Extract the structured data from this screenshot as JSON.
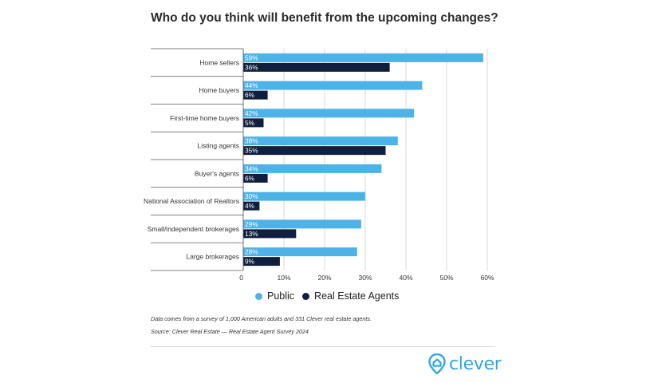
{
  "title": "Who do you think will benefit from the upcoming changes?",
  "colors": {
    "public": "#4db3e6",
    "agents": "#0f1f3d",
    "grid": "#d9d9d9",
    "brand": "#2fa7e6"
  },
  "chart_data": {
    "type": "bar",
    "orientation": "horizontal",
    "categories": [
      "Home sellers",
      "Home buyers",
      "First-time home buyers",
      "Listing agents",
      "Buyer's agents",
      "National Association of Realtors",
      "Small/independent brokerages",
      "Large brokerages"
    ],
    "series": [
      {
        "name": "Public",
        "values": [
          59,
          44,
          42,
          38,
          34,
          30,
          29,
          28
        ],
        "labels": [
          "59%",
          "44%",
          "42%",
          "38%",
          "34%",
          "30%",
          "29%",
          "28%"
        ]
      },
      {
        "name": "Real Estate Agents",
        "values": [
          36,
          6,
          5,
          35,
          6,
          4,
          13,
          9
        ],
        "labels": [
          "36%",
          "6%",
          "5%",
          "35%",
          "6%",
          "4%",
          "13%",
          "9%"
        ]
      }
    ],
    "xlim": [
      0,
      60
    ],
    "ticks": [
      "0",
      "10%",
      "20%",
      "30%",
      "40%",
      "50%",
      "60%"
    ],
    "tick_values": [
      0,
      10,
      20,
      30,
      40,
      50,
      60
    ],
    "grid": true,
    "legend": "bottom"
  },
  "notes": {
    "survey": "Data comes from a survey of 1,000 American adults and 331 Clever real estate agents.",
    "source": "Source: Clever Real Estate — Real Estate Agent Survey 2024"
  },
  "brand": {
    "name": "clever",
    "logo_icon": "clever-house-pin-icon"
  }
}
